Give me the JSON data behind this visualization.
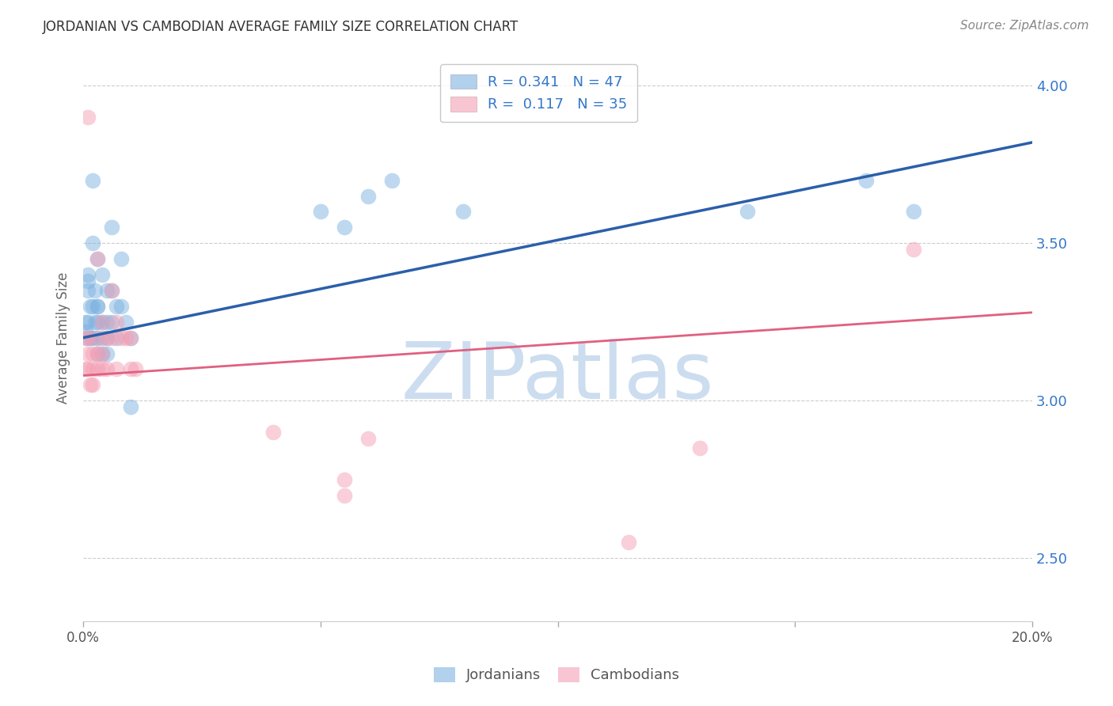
{
  "title": "JORDANIAN VS CAMBODIAN AVERAGE FAMILY SIZE CORRELATION CHART",
  "source": "Source: ZipAtlas.com",
  "ylabel": "Average Family Size",
  "xlim": [
    0.0,
    0.2
  ],
  "ylim": [
    2.3,
    4.1
  ],
  "yticks": [
    2.5,
    3.0,
    3.5,
    4.0
  ],
  "xticks": [
    0.0,
    0.05,
    0.1,
    0.15,
    0.2
  ],
  "background_color": "#ffffff",
  "blue_color": "#7eb3e0",
  "pink_color": "#f4a0b5",
  "blue_line_color": "#2b5faa",
  "pink_line_color": "#e06080",
  "watermark_color": "#cdddf0",
  "legend_R_blue": "0.341",
  "legend_N_blue": "47",
  "legend_R_pink": "0.117",
  "legend_N_pink": "35",
  "blue_trend_x": [
    0.0,
    0.2
  ],
  "blue_trend_y": [
    3.2,
    3.82
  ],
  "pink_trend_x": [
    0.0,
    0.2
  ],
  "pink_trend_y": [
    3.08,
    3.28
  ],
  "jordanian_x": [
    0.0005,
    0.0005,
    0.0008,
    0.001,
    0.001,
    0.001,
    0.001,
    0.0015,
    0.0015,
    0.002,
    0.002,
    0.002,
    0.002,
    0.0025,
    0.0025,
    0.003,
    0.003,
    0.003,
    0.003,
    0.003,
    0.003,
    0.004,
    0.004,
    0.004,
    0.004,
    0.005,
    0.005,
    0.005,
    0.005,
    0.006,
    0.006,
    0.006,
    0.007,
    0.007,
    0.008,
    0.008,
    0.009,
    0.01,
    0.01,
    0.05,
    0.055,
    0.06,
    0.065,
    0.08,
    0.14,
    0.165,
    0.175
  ],
  "jordanian_y": [
    3.22,
    3.25,
    3.2,
    3.4,
    3.38,
    3.35,
    3.25,
    3.3,
    3.2,
    3.7,
    3.5,
    3.3,
    3.2,
    3.35,
    3.25,
    3.3,
    3.25,
    3.2,
    3.15,
    3.45,
    3.3,
    3.4,
    3.25,
    3.2,
    3.15,
    3.35,
    3.25,
    3.2,
    3.15,
    3.55,
    3.35,
    3.25,
    3.3,
    3.2,
    3.45,
    3.3,
    3.25,
    3.2,
    2.98,
    3.6,
    3.55,
    3.65,
    3.7,
    3.6,
    3.6,
    3.7,
    3.6
  ],
  "cambodian_x": [
    0.0005,
    0.0005,
    0.001,
    0.001,
    0.001,
    0.001,
    0.0015,
    0.002,
    0.002,
    0.002,
    0.003,
    0.003,
    0.003,
    0.003,
    0.004,
    0.004,
    0.004,
    0.005,
    0.005,
    0.006,
    0.006,
    0.007,
    0.007,
    0.008,
    0.009,
    0.01,
    0.01,
    0.011,
    0.04,
    0.055,
    0.055,
    0.06,
    0.115,
    0.13,
    0.175
  ],
  "cambodian_y": [
    3.2,
    3.1,
    3.9,
    3.2,
    3.15,
    3.1,
    3.05,
    3.15,
    3.1,
    3.05,
    3.45,
    3.2,
    3.15,
    3.1,
    3.25,
    3.15,
    3.1,
    3.2,
    3.1,
    3.35,
    3.2,
    3.25,
    3.1,
    3.2,
    3.2,
    3.2,
    3.1,
    3.1,
    2.9,
    2.7,
    2.75,
    2.88,
    2.55,
    2.85,
    3.48
  ]
}
